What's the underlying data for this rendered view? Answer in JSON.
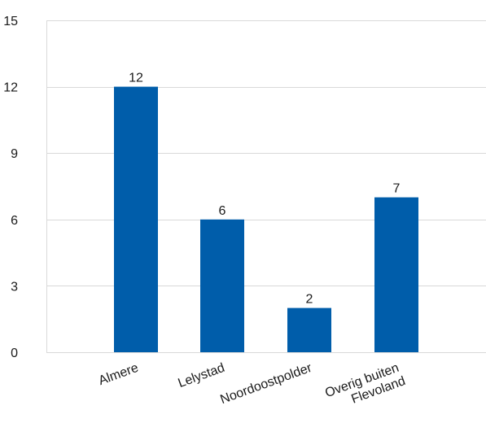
{
  "chart_data": {
    "type": "bar",
    "categories": [
      [
        "Almere"
      ],
      [
        "Lelystad"
      ],
      [
        "Noordoostpolder"
      ],
      [
        "Overig buiten",
        "Flevoland"
      ]
    ],
    "values": [
      12,
      6,
      2,
      7
    ],
    "data_labels": [
      "12",
      "6",
      "2",
      "7"
    ],
    "ylim": [
      0,
      15
    ],
    "yticks": [
      0,
      3,
      6,
      9,
      12,
      15
    ],
    "ytick_labels": [
      "0",
      "3",
      "6",
      "9",
      "12",
      "15"
    ],
    "grid": "horizontal",
    "legend": "none",
    "bar_color": "#005DAA",
    "axis_color": "#D9D9D9"
  }
}
